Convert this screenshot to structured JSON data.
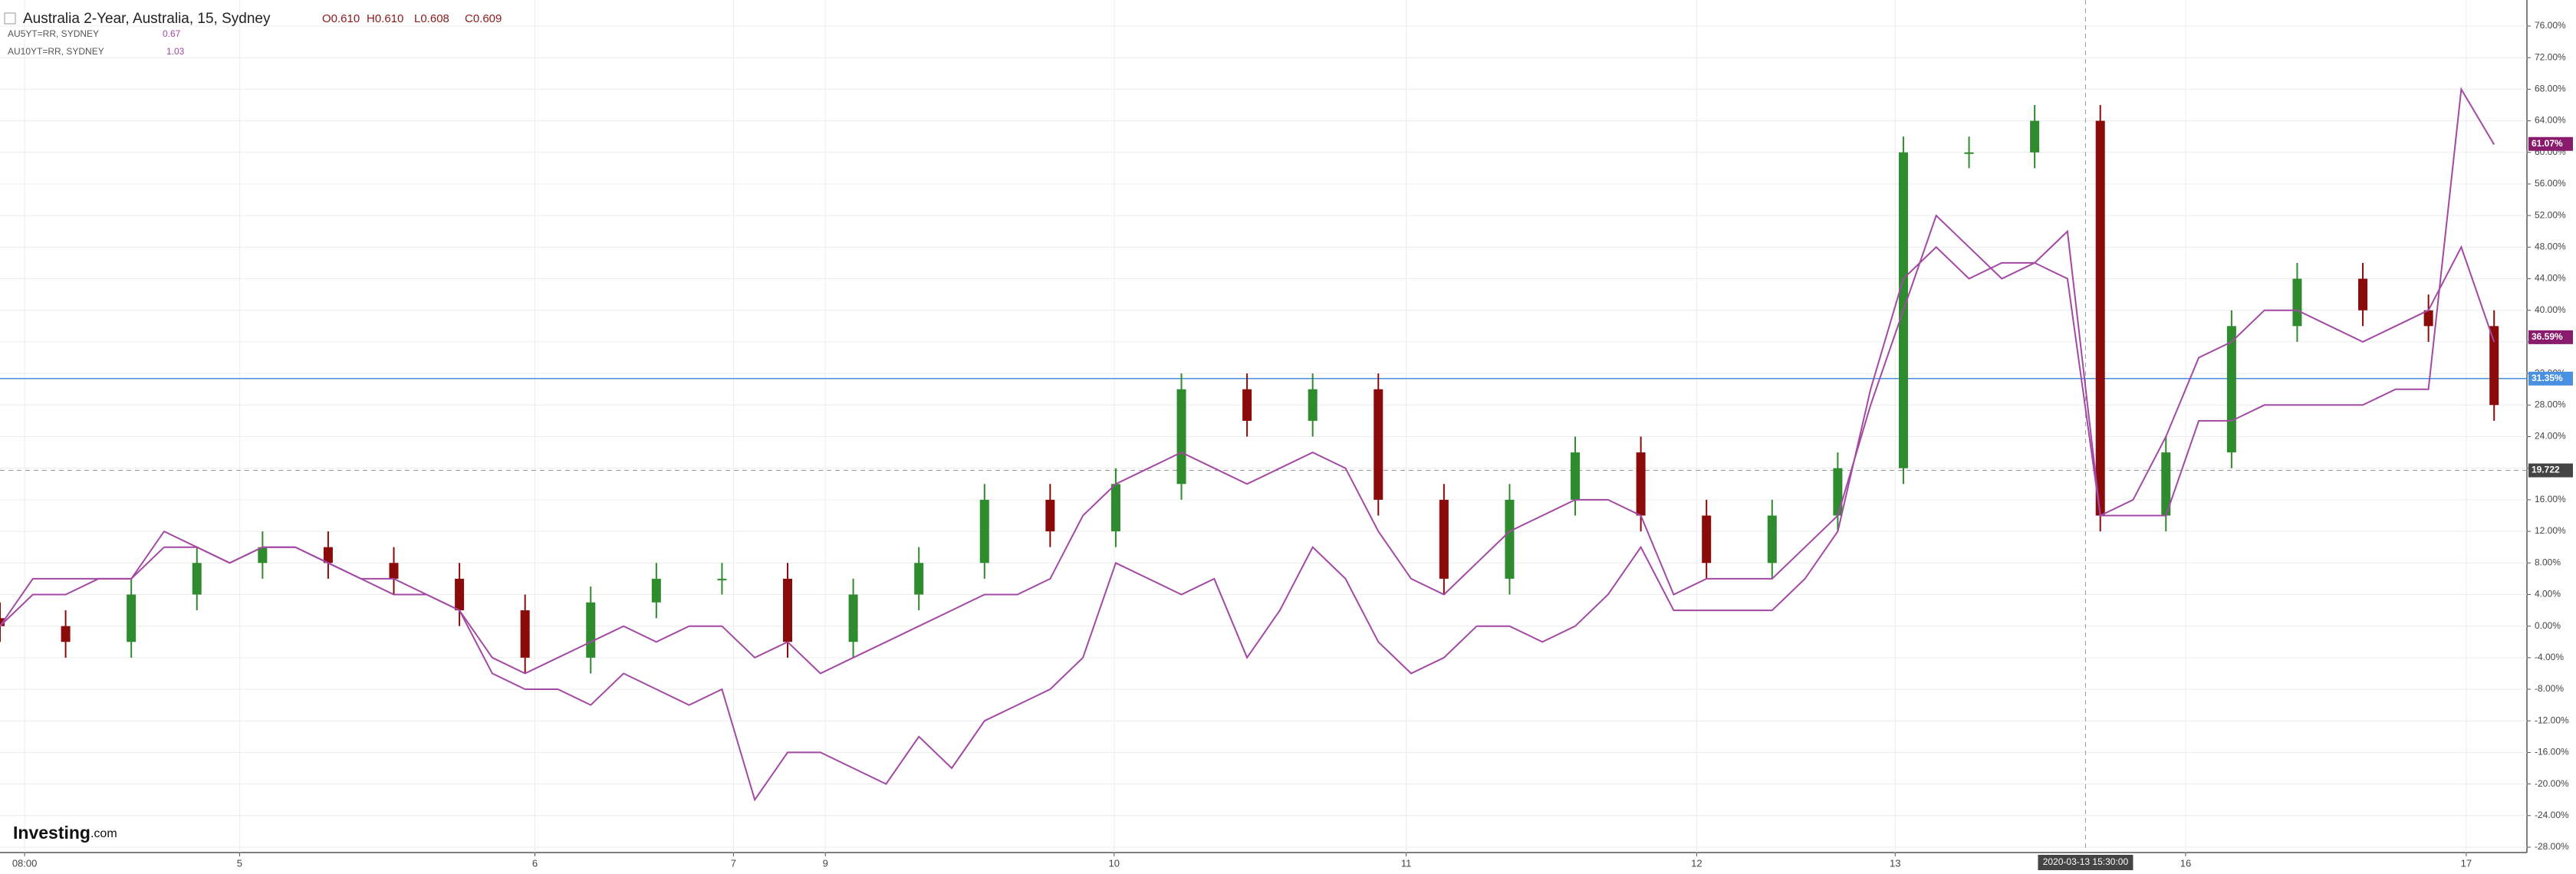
{
  "chart_data": {
    "type": "candlestick",
    "title": "Australia 2-Year, Australia, 15, Sydney",
    "ohlc_legend": [
      "O0.610",
      "H0.610",
      "L0.608",
      "C0.609"
    ],
    "logo": {
      "main": "Investing",
      "suffix": ".com"
    },
    "xlim": [
      0,
      154
    ],
    "xticks": [
      {
        "value": 1.5,
        "label": "08:00"
      },
      {
        "value": 14.6,
        "label": "5"
      },
      {
        "value": 32.6,
        "label": "6"
      },
      {
        "value": 44.7,
        "label": "7"
      },
      {
        "value": 50.3,
        "label": "9"
      },
      {
        "value": 67.9,
        "label": "10"
      },
      {
        "value": 85.7,
        "label": "11"
      },
      {
        "value": 103.4,
        "label": "12"
      },
      {
        "value": 115.5,
        "label": "13"
      },
      {
        "value": 133.2,
        "label": "16"
      },
      {
        "value": 150.3,
        "label": "17"
      }
    ],
    "ylim": [
      -28,
      76
    ],
    "yticks": [
      {
        "value": -28,
        "label": "-28.00%"
      },
      {
        "value": -24,
        "label": "-24.00%"
      },
      {
        "value": -20,
        "label": "-20.00%"
      },
      {
        "value": -16,
        "label": "-16.00%"
      },
      {
        "value": -12,
        "label": "-12.00%"
      },
      {
        "value": -8,
        "label": "-8.00%"
      },
      {
        "value": -4,
        "label": "-4.00%"
      },
      {
        "value": 0,
        "label": "0.00%"
      },
      {
        "value": 4,
        "label": "4.00%"
      },
      {
        "value": 8,
        "label": "8.00%"
      },
      {
        "value": 12,
        "label": "12.00%"
      },
      {
        "value": 16,
        "label": "16.00%"
      },
      {
        "value": 20,
        "label": "20.00%"
      },
      {
        "value": 24,
        "label": "24.00%"
      },
      {
        "value": 28,
        "label": "28.00%"
      },
      {
        "value": 32,
        "label": "32.00%"
      },
      {
        "value": 36,
        "label": "36.00%"
      },
      {
        "value": 40,
        "label": "40.00%"
      },
      {
        "value": 44,
        "label": "44.00%"
      },
      {
        "value": 48,
        "label": "48.00%"
      },
      {
        "value": 52,
        "label": "52.00%"
      },
      {
        "value": 56,
        "label": "56.00%"
      },
      {
        "value": 60,
        "label": "60.00%"
      },
      {
        "value": 64,
        "label": "64.00%"
      },
      {
        "value": 68,
        "label": "68.00%"
      },
      {
        "value": 72,
        "label": "72.00%"
      },
      {
        "value": 76,
        "label": "76.00%"
      }
    ],
    "grid": true,
    "crosshair": {
      "x": {
        "value": 127.1,
        "label": "2020-03-13 15:30:00"
      },
      "y": 19.722
    },
    "price_line": {
      "value": 31.35,
      "label": "31.35%",
      "color": "#4a90e2"
    },
    "price_labels": [
      {
        "value": 61.07,
        "label": "61.07%",
        "color": "#8a1a6b"
      },
      {
        "value": 36.59,
        "label": "36.59%",
        "color": "#8a1a6b"
      }
    ],
    "candles": {
      "up_color": "#2e8b2e",
      "down_color": "#8b0a0a",
      "x": [
        0,
        4,
        8,
        12,
        16,
        20,
        24,
        28,
        32,
        36,
        40,
        44,
        48,
        52,
        56,
        60,
        64,
        68,
        72,
        76,
        80,
        84,
        88,
        92,
        96,
        100,
        104,
        108,
        112,
        116,
        120,
        124,
        128,
        132,
        136,
        140,
        144,
        148,
        152
      ],
      "open": [
        1,
        0,
        -2,
        4,
        8,
        10,
        8,
        6,
        2,
        -4,
        3,
        6,
        6,
        -2,
        4,
        8,
        16,
        12,
        18,
        30,
        26,
        30,
        16,
        6,
        16,
        22,
        14,
        8,
        14,
        20,
        60,
        60,
        64,
        14,
        22,
        38,
        44,
        40,
        38
      ],
      "high": [
        3,
        2,
        6,
        10,
        12,
        12,
        10,
        8,
        4,
        5,
        8,
        8,
        8,
        6,
        10,
        18,
        18,
        20,
        32,
        32,
        32,
        32,
        18,
        18,
        24,
        24,
        16,
        16,
        22,
        62,
        62,
        66,
        66,
        24,
        40,
        46,
        46,
        42,
        40
      ],
      "low": [
        -2,
        -4,
        -4,
        2,
        6,
        6,
        4,
        0,
        -6,
        -6,
        1,
        4,
        -4,
        -4,
        2,
        6,
        10,
        10,
        16,
        24,
        24,
        14,
        4,
        4,
        14,
        12,
        6,
        6,
        12,
        18,
        58,
        58,
        12,
        12,
        20,
        36,
        38,
        36,
        26
      ],
      "close": [
        0,
        -2,
        4,
        8,
        10,
        8,
        6,
        2,
        -4,
        3,
        6,
        6,
        -2,
        4,
        8,
        16,
        12,
        18,
        30,
        26,
        30,
        16,
        6,
        16,
        22,
        14,
        8,
        14,
        20,
        60,
        60,
        64,
        14,
        22,
        38,
        44,
        40,
        38,
        28
      ]
    },
    "series": [
      {
        "name": "AU5YT=RR, SYDNEY",
        "legend_value": 0.67,
        "color": "#a349a4",
        "x": [
          0,
          2,
          4,
          6,
          8,
          10,
          12,
          14,
          16,
          18,
          20,
          22,
          24,
          26,
          28,
          30,
          32,
          34,
          36,
          38,
          40,
          42,
          44,
          46,
          48,
          50,
          52,
          54,
          56,
          58,
          60,
          62,
          64,
          66,
          68,
          70,
          72,
          74,
          76,
          78,
          80,
          82,
          84,
          86,
          88,
          90,
          92,
          94,
          96,
          98,
          100,
          102,
          104,
          106,
          108,
          110,
          112,
          114,
          116,
          118,
          120,
          122,
          124,
          126,
          128,
          130,
          132,
          134,
          136,
          138,
          140,
          142,
          144,
          146,
          148,
          150,
          152
        ],
        "values": [
          0,
          6,
          6,
          6,
          6,
          12,
          10,
          8,
          10,
          10,
          8,
          6,
          4,
          4,
          2,
          -4,
          -6,
          -4,
          -2,
          0,
          -2,
          0,
          0,
          -4,
          -2,
          -6,
          -4,
          -2,
          0,
          2,
          4,
          4,
          6,
          14,
          18,
          20,
          22,
          20,
          18,
          20,
          22,
          20,
          12,
          6,
          4,
          8,
          12,
          14,
          16,
          16,
          14,
          4,
          6,
          6,
          6,
          10,
          14,
          28,
          40,
          52,
          48,
          44,
          46,
          44,
          14,
          16,
          24,
          34,
          36,
          40,
          40,
          38,
          36,
          38,
          40,
          48,
          36
        ]
      },
      {
        "name": "AU10YT=RR, SYDNEY",
        "legend_value": 1.03,
        "color": "#a349a4",
        "x": [
          0,
          2,
          4,
          6,
          8,
          10,
          12,
          14,
          16,
          18,
          20,
          22,
          24,
          26,
          28,
          30,
          32,
          34,
          36,
          38,
          40,
          42,
          44,
          46,
          48,
          50,
          52,
          54,
          56,
          58,
          60,
          62,
          64,
          66,
          68,
          70,
          72,
          74,
          76,
          78,
          80,
          82,
          84,
          86,
          88,
          90,
          92,
          94,
          96,
          98,
          100,
          102,
          104,
          106,
          108,
          110,
          112,
          114,
          116,
          118,
          120,
          122,
          124,
          126,
          128,
          130,
          132,
          134,
          136,
          138,
          140,
          142,
          144,
          146,
          148,
          150,
          152
        ],
        "values": [
          0,
          4,
          4,
          6,
          6,
          10,
          10,
          8,
          10,
          10,
          8,
          6,
          6,
          4,
          2,
          -6,
          -8,
          -8,
          -10,
          -6,
          -8,
          -10,
          -8,
          -22,
          -16,
          -16,
          -18,
          -20,
          -14,
          -18,
          -12,
          -10,
          -8,
          -4,
          8,
          6,
          4,
          6,
          -4,
          2,
          10,
          6,
          -2,
          -6,
          -4,
          0,
          0,
          -2,
          0,
          4,
          10,
          2,
          2,
          2,
          2,
          6,
          12,
          30,
          44,
          48,
          44,
          46,
          46,
          50,
          14,
          14,
          14,
          26,
          26,
          28,
          28,
          28,
          28,
          30,
          30,
          68,
          61
        ]
      }
    ]
  }
}
